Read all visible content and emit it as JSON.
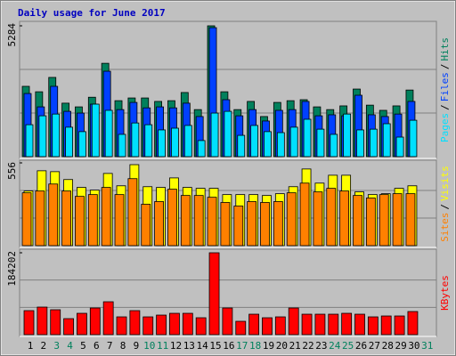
{
  "chart_data": [
    {
      "type": "bar",
      "title": "Daily usage for June 2017",
      "ylim": [
        0,
        5284
      ],
      "yticks": [
        5284
      ],
      "grid": true,
      "legend_separator": "/",
      "series": [
        {
          "name": "Hits",
          "color": "#00805c",
          "values": [
            2840,
            2620,
            3200,
            2160,
            2010,
            2400,
            3770,
            2260,
            2370,
            2370,
            2230,
            2260,
            2590,
            1900,
            5284,
            2620,
            1900,
            2230,
            1620,
            2190,
            2260,
            2300,
            2010,
            1900,
            2050,
            2730,
            2080,
            1870,
            2050,
            2690,
            null
          ]
        },
        {
          "name": "Files",
          "color": "#0040ff",
          "values": [
            2550,
            2010,
            2840,
            1830,
            1760,
            2120,
            3450,
            1900,
            2190,
            1970,
            2010,
            1970,
            2160,
            1620,
            5210,
            2300,
            1650,
            1900,
            1440,
            1870,
            1900,
            2230,
            1650,
            1690,
            1650,
            2480,
            1690,
            1620,
            1720,
            2230,
            null
          ]
        },
        {
          "name": "Pages",
          "color": "#00e0ff",
          "values": [
            1290,
            1650,
            1720,
            1190,
            1010,
            2120,
            1870,
            900,
            1360,
            1290,
            1080,
            1150,
            1260,
            650,
            1760,
            1830,
            860,
            1260,
            1010,
            970,
            1190,
            1510,
            1110,
            900,
            1720,
            1080,
            1110,
            1330,
            790,
            1470,
            null
          ]
        }
      ]
    },
    {
      "type": "bar",
      "ylim": [
        0,
        556
      ],
      "yticks": [
        556
      ],
      "grid": true,
      "legend_separator": "/",
      "series": [
        {
          "name": "Visits",
          "color": "#ffff00",
          "values": [
            367,
            503,
            497,
            444,
            391,
            373,
            485,
            402,
            544,
            396,
            391,
            455,
            391,
            385,
            385,
            343,
            343,
            343,
            337,
            349,
            396,
            515,
            420,
            473,
            473,
            361,
            343,
            349,
            385,
            402,
            null
          ]
        },
        {
          "name": "Sites",
          "color": "#ff8000",
          "values": [
            355,
            367,
            414,
            367,
            331,
            343,
            391,
            343,
            450,
            278,
            296,
            379,
            337,
            337,
            325,
            290,
            266,
            296,
            290,
            296,
            355,
            420,
            361,
            385,
            367,
            337,
            320,
            343,
            349,
            349,
            null
          ]
        }
      ]
    },
    {
      "type": "bar",
      "ylim": [
        0,
        184202
      ],
      "yticks": [
        184202
      ],
      "grid": true,
      "categories": [
        "1",
        "2",
        "3",
        "4",
        "5",
        "6",
        "7",
        "8",
        "9",
        "10",
        "11",
        "12",
        "13",
        "14",
        "15",
        "16",
        "17",
        "18",
        "19",
        "20",
        "21",
        "22",
        "23",
        "24",
        "25",
        "26",
        "27",
        "28",
        "29",
        "30",
        "31"
      ],
      "label_colors": [
        "#000000",
        "#000000",
        "#00805c",
        "#00805c",
        "#000000",
        "#000000",
        "#000000",
        "#000000",
        "#000000",
        "#00805c",
        "#00805c",
        "#000000",
        "#000000",
        "#000000",
        "#000000",
        "#000000",
        "#00805c",
        "#00805c",
        "#000000",
        "#000000",
        "#000000",
        "#000000",
        "#000000",
        "#00805c",
        "#00805c",
        "#000000",
        "#000000",
        "#000000",
        "#000000",
        "#000000",
        "#00805c"
      ],
      "series": [
        {
          "name": "KBytes",
          "color": "#ff0000",
          "values": [
            54000,
            62000,
            56000,
            36000,
            48000,
            60000,
            74000,
            40000,
            54000,
            40000,
            44000,
            48000,
            48000,
            38000,
            184202,
            60000,
            30000,
            46000,
            38000,
            40000,
            60000,
            46000,
            46000,
            46000,
            48000,
            46000,
            40000,
            42000,
            42000,
            52000,
            null
          ]
        }
      ]
    }
  ]
}
